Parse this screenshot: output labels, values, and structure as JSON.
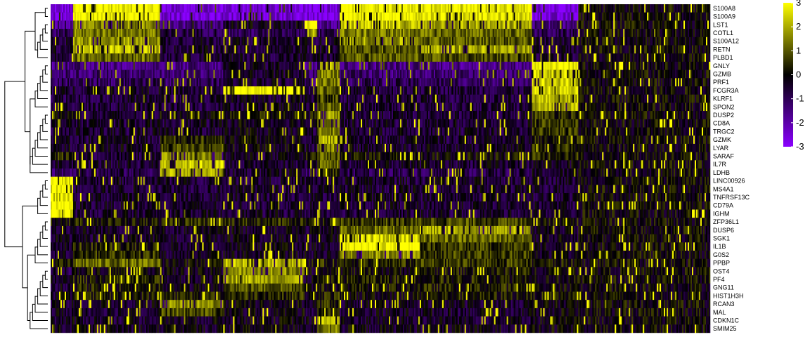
{
  "chart_data": {
    "type": "heatmap",
    "title": "",
    "xlabel": "",
    "ylabel": "",
    "rows": [
      "S100A8",
      "S100A9",
      "LST1",
      "COTL1",
      "S100A12",
      "RETN",
      "PLBD1",
      "GNLY",
      "GZMB",
      "PRF1",
      "FCGR3A",
      "KLRF1",
      "SPON2",
      "DUSP2",
      "CD8A",
      "TRGC2",
      "GZMK",
      "LYAR",
      "SARAF",
      "IL7R",
      "LDHB",
      "LINC00926",
      "MS4A1",
      "TNFRSF13C",
      "CD79A",
      "IGHM",
      "ZFP36L1",
      "DUSP6",
      "SGK1",
      "IL1B",
      "G0S2",
      "PPBP",
      "OST4",
      "PF4",
      "GNG11",
      "HIST1H3H",
      "RCAN3",
      "MAL",
      "CDKN1C",
      "SMIM25"
    ],
    "color_scale": {
      "min": -3,
      "max": 3,
      "ticks": [
        3,
        2,
        1,
        0,
        -1,
        -2,
        -3
      ],
      "colors": [
        "#8a00ff",
        "#000000",
        "#ffff00"
      ]
    },
    "column_blocks": [
      {
        "start": 0.0,
        "end": 0.033
      },
      {
        "start": 0.033,
        "end": 0.165
      },
      {
        "start": 0.165,
        "end": 0.262
      },
      {
        "start": 0.262,
        "end": 0.385
      },
      {
        "start": 0.385,
        "end": 0.405
      },
      {
        "start": 0.405,
        "end": 0.438
      },
      {
        "start": 0.438,
        "end": 0.56
      },
      {
        "start": 0.56,
        "end": 0.73
      },
      {
        "start": 0.73,
        "end": 0.8
      },
      {
        "start": 0.8,
        "end": 1.0
      }
    ],
    "block_means": [
      [
        -2.6,
        3.0,
        -2.6,
        -2.5,
        -2.6,
        -2.6,
        3.0,
        2.8,
        -2.6,
        0
      ],
      [
        -2.6,
        3.0,
        -2.6,
        -2.5,
        -2.6,
        -2.6,
        3.0,
        2.8,
        -2.6,
        0
      ],
      [
        -1.5,
        1.6,
        -1.5,
        -0.3,
        3.0,
        -1.5,
        2.2,
        2.0,
        -1.4,
        0
      ],
      [
        -1.0,
        1.4,
        -0.8,
        -1.0,
        2.0,
        -1.0,
        1.4,
        1.2,
        -1.0,
        0
      ],
      [
        -0.5,
        1.8,
        -0.5,
        -0.5,
        -0.5,
        -0.5,
        1.8,
        1.0,
        -0.5,
        0
      ],
      [
        -0.5,
        2.2,
        -0.5,
        -0.5,
        -0.5,
        -0.5,
        1.0,
        2.0,
        -0.5,
        0
      ],
      [
        -0.5,
        1.2,
        -0.5,
        -0.5,
        -0.5,
        -0.5,
        1.0,
        0.8,
        -0.5,
        0
      ],
      [
        -1.5,
        -1.5,
        -1.5,
        -0.4,
        -1.5,
        2.2,
        -1.5,
        -1.5,
        3.0,
        0
      ],
      [
        -1.3,
        -1.3,
        -1.3,
        -0.5,
        -1.3,
        1.6,
        -1.3,
        -1.3,
        2.5,
        0
      ],
      [
        -1.0,
        -1.0,
        -1.0,
        -0.4,
        -1.0,
        1.5,
        -1.0,
        -1.0,
        2.4,
        0
      ],
      [
        -0.6,
        -0.4,
        -0.6,
        3.0,
        -0.6,
        1.2,
        -0.6,
        -0.6,
        2.5,
        0
      ],
      [
        -0.6,
        -0.6,
        -0.6,
        -0.4,
        -0.6,
        0.8,
        -0.6,
        -0.6,
        2.2,
        0
      ],
      [
        -0.6,
        -0.6,
        -0.6,
        -0.4,
        -0.6,
        1.2,
        -0.6,
        -0.6,
        2.2,
        0
      ],
      [
        0.0,
        -0.6,
        0.0,
        0.2,
        0.0,
        1.8,
        -0.6,
        -0.6,
        0.6,
        0
      ],
      [
        -0.5,
        -0.5,
        -0.5,
        -0.2,
        -0.5,
        1.6,
        -0.5,
        -0.5,
        0.6,
        0
      ],
      [
        -0.5,
        -0.5,
        -0.5,
        -0.2,
        -0.5,
        1.4,
        -0.5,
        -0.5,
        0.6,
        0
      ],
      [
        -0.5,
        -0.5,
        0.5,
        -0.2,
        -0.5,
        2.0,
        -0.5,
        -0.5,
        0.3,
        0
      ],
      [
        -0.4,
        -0.4,
        0.8,
        -0.1,
        -0.4,
        1.6,
        -0.4,
        -0.4,
        0.4,
        0
      ],
      [
        0.5,
        -0.6,
        1.6,
        -0.4,
        0.3,
        1.0,
        0.2,
        0.0,
        0.5,
        0
      ],
      [
        -0.5,
        -0.5,
        2.4,
        -0.5,
        -0.5,
        1.2,
        -0.5,
        -0.5,
        -0.3,
        0
      ],
      [
        -1.0,
        -0.8,
        2.0,
        -0.5,
        -1.0,
        0.4,
        -0.8,
        -0.8,
        -0.5,
        0
      ],
      [
        3.0,
        -0.5,
        -0.5,
        -0.5,
        -0.5,
        -0.5,
        -0.5,
        -0.5,
        -0.5,
        0
      ],
      [
        3.0,
        -0.5,
        -0.5,
        -0.5,
        -0.5,
        -0.5,
        -0.5,
        -0.5,
        -0.5,
        0
      ],
      [
        2.6,
        -0.5,
        -0.5,
        -0.5,
        -0.5,
        -0.5,
        -0.5,
        -0.5,
        -0.5,
        0
      ],
      [
        3.0,
        -0.5,
        -0.5,
        -0.5,
        -0.5,
        -0.5,
        -0.5,
        -0.5,
        -0.5,
        0
      ],
      [
        3.0,
        -0.5,
        -0.5,
        -0.5,
        -0.5,
        -0.5,
        -0.5,
        -0.5,
        -0.5,
        0
      ],
      [
        0.2,
        0.2,
        0.4,
        0.4,
        0.2,
        0.3,
        0.6,
        0.8,
        0.2,
        0
      ],
      [
        -0.4,
        -0.4,
        -0.4,
        -0.3,
        -0.4,
        -0.3,
        1.2,
        2.0,
        -0.3,
        0
      ],
      [
        -0.4,
        -0.4,
        -0.4,
        -0.3,
        -0.4,
        -0.3,
        2.6,
        1.2,
        -0.3,
        0
      ],
      [
        -0.4,
        0.4,
        -0.4,
        -0.3,
        -0.4,
        -0.3,
        3.0,
        0.6,
        -0.3,
        0
      ],
      [
        -0.4,
        0.6,
        -0.4,
        -0.3,
        -0.4,
        -0.3,
        1.6,
        0.6,
        -0.3,
        0
      ],
      [
        0.0,
        1.2,
        0.0,
        2.2,
        0.0,
        0.3,
        0.4,
        0.6,
        0.2,
        0
      ],
      [
        -0.6,
        0.0,
        -0.3,
        1.6,
        -0.3,
        0.2,
        0.0,
        0.2,
        0.0,
        0
      ],
      [
        -0.4,
        0.3,
        -0.3,
        2.0,
        -0.3,
        0.2,
        0.3,
        0.3,
        0.0,
        0
      ],
      [
        -0.4,
        0.2,
        -0.3,
        1.0,
        -0.3,
        0.1,
        0.2,
        0.3,
        0.0,
        0
      ],
      [
        -0.3,
        0.2,
        0.3,
        0.5,
        -0.2,
        0.4,
        0.0,
        0.2,
        0.2,
        0
      ],
      [
        -0.4,
        -0.4,
        1.6,
        -0.2,
        -0.4,
        0.4,
        -0.4,
        -0.4,
        -0.2,
        0
      ],
      [
        -0.4,
        -0.4,
        0.8,
        -0.2,
        -0.4,
        0.3,
        -0.4,
        -0.4,
        -0.2,
        0
      ],
      [
        -0.4,
        -0.4,
        -0.3,
        -0.2,
        -0.4,
        2.4,
        -0.4,
        -0.4,
        -0.2,
        0
      ],
      [
        -0.3,
        -0.3,
        -0.3,
        -0.2,
        -0.3,
        1.4,
        -0.3,
        -0.3,
        -0.2,
        0
      ]
    ]
  }
}
